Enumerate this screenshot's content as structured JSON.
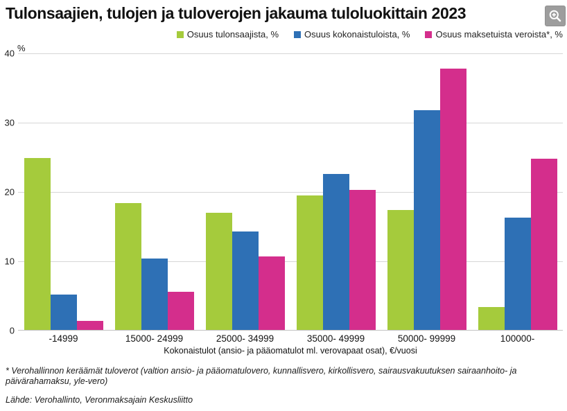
{
  "header": {
    "title": "Tulonsaajien, tulojen ja tuloverojen jakauma tuloluokittain 2023"
  },
  "chart_data": {
    "type": "bar",
    "title": "Tulonsaajien, tulojen ja tuloverojen jakauma tuloluokittain 2023",
    "categories": [
      "-14999",
      "15000- 24999",
      "25000- 34999",
      "35000- 49999",
      "50000- 99999",
      "100000-"
    ],
    "series": [
      {
        "name": "Osuus tulonsaajista, %",
        "color": "#a5cb3c",
        "values": [
          24.8,
          18.3,
          16.9,
          19.4,
          17.3,
          3.3
        ]
      },
      {
        "name": "Osuus kokonaistuloista, %",
        "color": "#2e70b5",
        "values": [
          5.1,
          10.3,
          14.2,
          22.5,
          31.7,
          16.2
        ]
      },
      {
        "name": "Osuus maksetuista veroista*, %",
        "color": "#d42e8c",
        "values": [
          1.3,
          5.5,
          10.6,
          20.2,
          37.7,
          24.7
        ]
      }
    ],
    "xlabel": "Kokonaistulot (ansio- ja pääomatulot ml. verovapaat osat), €/vuosi",
    "ylabel": "%",
    "ylim": [
      0,
      40
    ],
    "yticks": [
      0,
      10,
      20,
      30,
      40
    ],
    "grid": true,
    "legend_position": "top-right"
  },
  "footnotes": {
    "note": "* Verohallinnon keräämät tuloverot (valtion ansio- ja pääomatulovero, kunnallisvero, kirkollisvero, sairausvakuutuksen sairaanhoito- ja päivärahamaksu, yle-vero)",
    "source": "Lähde: Verohallinto, Veronmaksajain Keskusliitto"
  }
}
